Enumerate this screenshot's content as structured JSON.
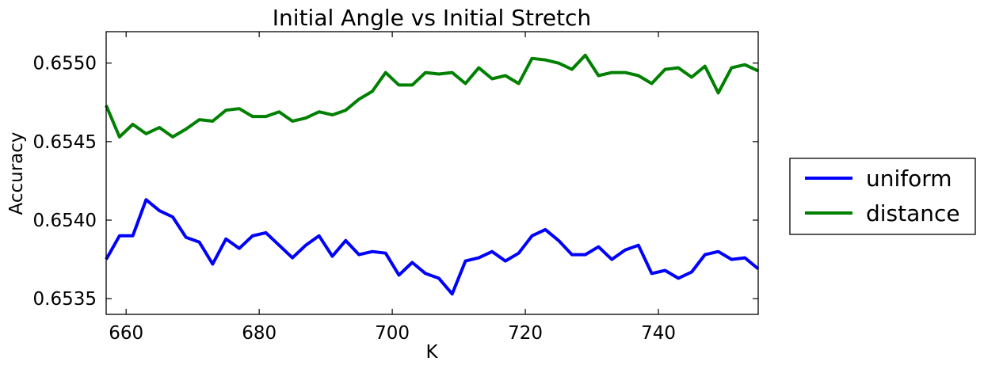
{
  "chart_data": {
    "type": "line",
    "title": "Initial Angle vs Initial Stretch",
    "xlabel": "K",
    "ylabel": "Accuracy",
    "xlim": [
      657,
      755
    ],
    "ylim": [
      0.6534,
      0.6552
    ],
    "xticks": [
      660,
      680,
      700,
      720,
      740
    ],
    "xtick_labels": [
      "660",
      "680",
      "700",
      "720",
      "740"
    ],
    "yticks": [
      0.6535,
      0.654,
      0.6545,
      0.655
    ],
    "ytick_labels": [
      "0.6535",
      "0.6540",
      "0.6545",
      "0.6550"
    ],
    "grid": false,
    "legend_position": "right, outside plot",
    "x": [
      657,
      659,
      661,
      663,
      665,
      667,
      669,
      671,
      673,
      675,
      677,
      679,
      681,
      683,
      685,
      687,
      689,
      691,
      693,
      695,
      697,
      699,
      701,
      703,
      705,
      707,
      709,
      711,
      713,
      715,
      717,
      719,
      721,
      723,
      725,
      727,
      729,
      731,
      733,
      735,
      737,
      739,
      741,
      743,
      745,
      747,
      749,
      751,
      753,
      755
    ],
    "series": [
      {
        "name": "uniform",
        "color": "#0000ff",
        "values": [
          0.65375,
          0.6539,
          0.6539,
          0.65413,
          0.65406,
          0.65402,
          0.65389,
          0.65386,
          0.65372,
          0.65388,
          0.65382,
          0.6539,
          0.65392,
          0.65384,
          0.65376,
          0.65384,
          0.6539,
          0.65377,
          0.65387,
          0.65378,
          0.6538,
          0.65379,
          0.65365,
          0.65373,
          0.65366,
          0.65363,
          0.65353,
          0.65374,
          0.65376,
          0.6538,
          0.65374,
          0.65379,
          0.6539,
          0.65394,
          0.65387,
          0.65378,
          0.65378,
          0.65383,
          0.65375,
          0.65381,
          0.65384,
          0.65366,
          0.65368,
          0.65363,
          0.65367,
          0.65378,
          0.6538,
          0.65375,
          0.65376,
          0.65369
        ]
      },
      {
        "name": "distance",
        "color": "#008000",
        "values": [
          0.65473,
          0.65453,
          0.65461,
          0.65455,
          0.65459,
          0.65453,
          0.65458,
          0.65464,
          0.65463,
          0.6547,
          0.65471,
          0.65466,
          0.65466,
          0.65469,
          0.65463,
          0.65465,
          0.65469,
          0.65467,
          0.6547,
          0.65477,
          0.65482,
          0.65494,
          0.65486,
          0.65486,
          0.65494,
          0.65493,
          0.65494,
          0.65487,
          0.65497,
          0.6549,
          0.65492,
          0.65487,
          0.65503,
          0.65502,
          0.655,
          0.65496,
          0.65505,
          0.65492,
          0.65494,
          0.65494,
          0.65492,
          0.65487,
          0.65496,
          0.65497,
          0.65491,
          0.65498,
          0.65481,
          0.65497,
          0.65499,
          0.65495
        ]
      }
    ]
  }
}
